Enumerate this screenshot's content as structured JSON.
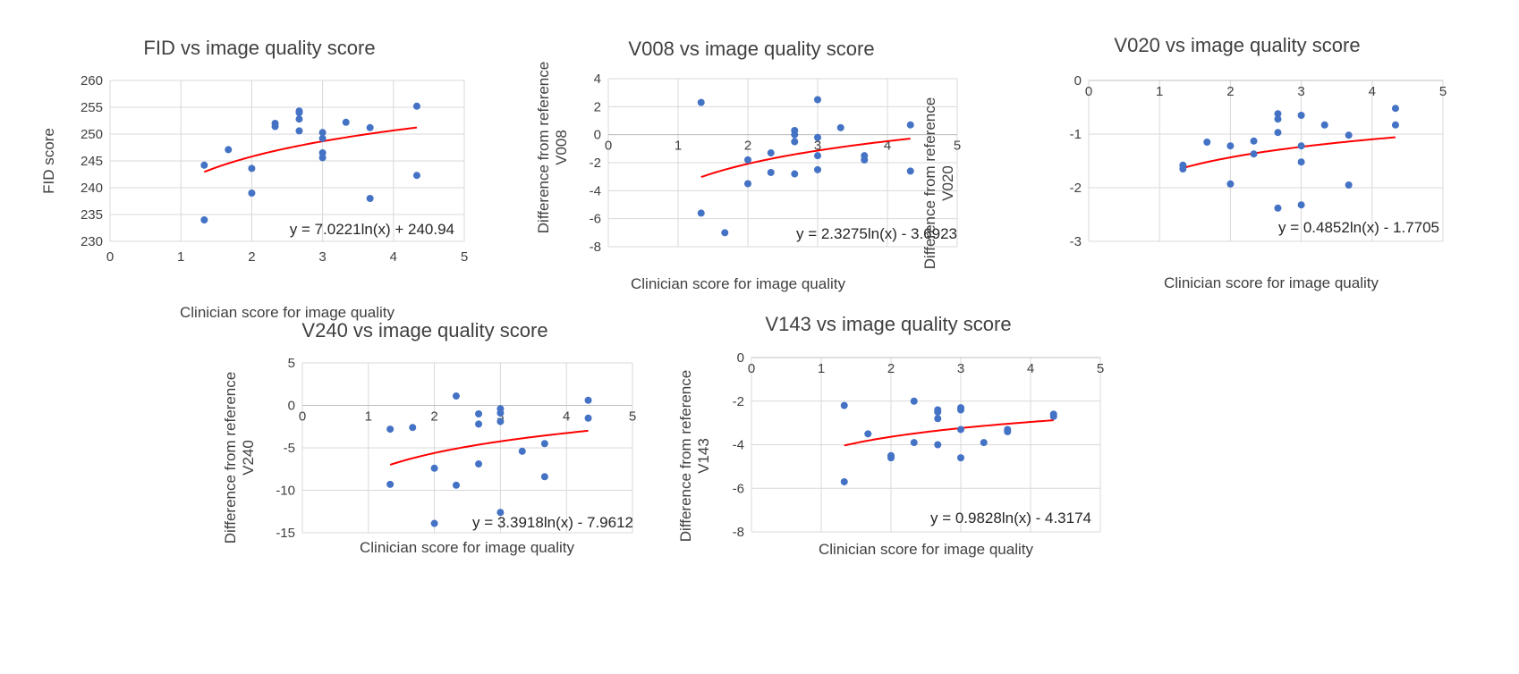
{
  "chart_data": [
    {
      "type": "scatter",
      "title": "FID vs image quality score",
      "xlabel": "Clinician score for image quality",
      "ylabel": "FID score",
      "ylabel2": "",
      "xlim": [
        0,
        5
      ],
      "ylim": [
        230,
        260
      ],
      "xticks": [
        0,
        1,
        2,
        3,
        4,
        5
      ],
      "yticks": [
        230,
        235,
        240,
        245,
        250,
        255,
        260
      ],
      "x_axis_at": "bottom",
      "grid": true,
      "colors": {
        "points": "#4472c4",
        "trendline": "#ff0000"
      },
      "trendline": {
        "a": 7.0221,
        "b": 240.94,
        "x_range": [
          1.33,
          4.33
        ],
        "label": "y = 7.0221ln(x) + 240.94"
      },
      "points": [
        {
          "x": 1.33,
          "y": 244.2
        },
        {
          "x": 1.33,
          "y": 234.0
        },
        {
          "x": 1.67,
          "y": 247.1
        },
        {
          "x": 2.0,
          "y": 243.6
        },
        {
          "x": 2.0,
          "y": 239.0
        },
        {
          "x": 2.33,
          "y": 252.0
        },
        {
          "x": 2.33,
          "y": 251.4
        },
        {
          "x": 2.67,
          "y": 254.3
        },
        {
          "x": 2.67,
          "y": 254.0
        },
        {
          "x": 2.67,
          "y": 252.8
        },
        {
          "x": 2.67,
          "y": 250.6
        },
        {
          "x": 3.0,
          "y": 250.3
        },
        {
          "x": 3.0,
          "y": 249.2
        },
        {
          "x": 3.0,
          "y": 246.5
        },
        {
          "x": 3.0,
          "y": 245.6
        },
        {
          "x": 3.33,
          "y": 252.2
        },
        {
          "x": 3.67,
          "y": 251.2
        },
        {
          "x": 3.67,
          "y": 238.0
        },
        {
          "x": 4.33,
          "y": 255.2
        },
        {
          "x": 4.33,
          "y": 242.3
        }
      ]
    },
    {
      "type": "scatter",
      "title": "V008 vs image quality score",
      "xlabel": "Clinician score for image quality",
      "ylabel": "Difference from reference",
      "ylabel2": "V008",
      "xlim": [
        0,
        5
      ],
      "ylim": [
        -8,
        4
      ],
      "xticks": [
        0,
        1,
        2,
        3,
        4,
        5
      ],
      "yticks": [
        -8,
        -6,
        -4,
        -2,
        0,
        2,
        4
      ],
      "x_axis_at": "zero",
      "grid": true,
      "colors": {
        "points": "#4472c4",
        "trendline": "#ff0000"
      },
      "trendline": {
        "a": 2.3275,
        "b": -3.6923,
        "x_range": [
          1.33,
          4.33
        ],
        "label": "y = 2.3275ln(x) - 3.6923"
      },
      "points": [
        {
          "x": 1.33,
          "y": 2.3
        },
        {
          "x": 1.33,
          "y": -5.6
        },
        {
          "x": 1.67,
          "y": -7.0
        },
        {
          "x": 2.0,
          "y": -1.8
        },
        {
          "x": 2.0,
          "y": -3.5
        },
        {
          "x": 2.33,
          "y": -1.3
        },
        {
          "x": 2.33,
          "y": -2.7
        },
        {
          "x": 2.67,
          "y": 0.3
        },
        {
          "x": 2.67,
          "y": 0.0
        },
        {
          "x": 2.67,
          "y": -0.5
        },
        {
          "x": 2.67,
          "y": -2.8
        },
        {
          "x": 3.0,
          "y": 2.5
        },
        {
          "x": 3.0,
          "y": -0.2
        },
        {
          "x": 3.0,
          "y": -1.5
        },
        {
          "x": 3.0,
          "y": -2.5
        },
        {
          "x": 3.33,
          "y": 0.5
        },
        {
          "x": 3.67,
          "y": -1.5
        },
        {
          "x": 3.67,
          "y": -1.8
        },
        {
          "x": 4.33,
          "y": 0.7
        },
        {
          "x": 4.33,
          "y": -2.6
        }
      ]
    },
    {
      "type": "scatter",
      "title": "V020 vs image quality score",
      "xlabel": "Clinician score for image quality",
      "ylabel": "Difference from reference",
      "ylabel2": "V020",
      "xlim": [
        0,
        5
      ],
      "ylim": [
        -3,
        0
      ],
      "xticks": [
        0,
        1,
        2,
        3,
        4,
        5
      ],
      "yticks": [
        -3,
        -2,
        -1,
        0
      ],
      "x_axis_at": "zero",
      "grid": true,
      "colors": {
        "points": "#4472c4",
        "trendline": "#ff0000"
      },
      "trendline": {
        "a": 0.4852,
        "b": -1.7705,
        "x_range": [
          1.33,
          4.33
        ],
        "label": "y = 0.4852ln(x) - 1.7705"
      },
      "points": [
        {
          "x": 1.33,
          "y": -1.58
        },
        {
          "x": 1.33,
          "y": -1.65
        },
        {
          "x": 1.67,
          "y": -1.15
        },
        {
          "x": 2.0,
          "y": -1.22
        },
        {
          "x": 2.0,
          "y": -1.93
        },
        {
          "x": 2.33,
          "y": -1.13
        },
        {
          "x": 2.33,
          "y": -1.37
        },
        {
          "x": 2.67,
          "y": -0.62
        },
        {
          "x": 2.67,
          "y": -0.72
        },
        {
          "x": 2.67,
          "y": -0.97
        },
        {
          "x": 2.67,
          "y": -2.38
        },
        {
          "x": 3.0,
          "y": -0.65
        },
        {
          "x": 3.0,
          "y": -1.22
        },
        {
          "x": 3.0,
          "y": -1.52
        },
        {
          "x": 3.0,
          "y": -2.32
        },
        {
          "x": 3.33,
          "y": -0.83
        },
        {
          "x": 3.67,
          "y": -1.02
        },
        {
          "x": 3.67,
          "y": -1.95
        },
        {
          "x": 4.33,
          "y": -0.52
        },
        {
          "x": 4.33,
          "y": -0.83
        }
      ]
    },
    {
      "type": "scatter",
      "title": "V240 vs image quality score",
      "xlabel": "Clinician score for image quality",
      "ylabel": "Difference from reference",
      "ylabel2": "V240",
      "xlim": [
        0,
        5
      ],
      "ylim": [
        -15,
        5
      ],
      "xticks": [
        0,
        1,
        2,
        3,
        4,
        5
      ],
      "yticks": [
        -15,
        -10,
        -5,
        0,
        5
      ],
      "x_axis_at": "zero",
      "grid": true,
      "colors": {
        "points": "#4472c4",
        "trendline": "#ff0000"
      },
      "trendline": {
        "a": 3.3918,
        "b": -7.9612,
        "x_range": [
          1.33,
          4.33
        ],
        "label": "y = 3.3918ln(x) - 7.9612"
      },
      "points": [
        {
          "x": 1.33,
          "y": -2.8
        },
        {
          "x": 1.33,
          "y": -9.3
        },
        {
          "x": 1.67,
          "y": -2.6
        },
        {
          "x": 2.0,
          "y": -7.4
        },
        {
          "x": 2.0,
          "y": -13.9
        },
        {
          "x": 2.33,
          "y": 1.1
        },
        {
          "x": 2.33,
          "y": -9.4
        },
        {
          "x": 2.67,
          "y": -1.0
        },
        {
          "x": 2.67,
          "y": -2.2
        },
        {
          "x": 2.67,
          "y": -6.9
        },
        {
          "x": 3.0,
          "y": -0.4
        },
        {
          "x": 3.0,
          "y": -0.9
        },
        {
          "x": 3.0,
          "y": -1.9
        },
        {
          "x": 3.0,
          "y": -12.6
        },
        {
          "x": 3.33,
          "y": -5.4
        },
        {
          "x": 3.67,
          "y": -4.5
        },
        {
          "x": 3.67,
          "y": -8.4
        },
        {
          "x": 4.33,
          "y": 0.6
        },
        {
          "x": 4.33,
          "y": -1.5
        }
      ]
    },
    {
      "type": "scatter",
      "title": "V143 vs image quality score",
      "xlabel": "Clinician score for image quality",
      "ylabel": "Difference from reference",
      "ylabel2": "V143",
      "xlim": [
        0,
        5
      ],
      "ylim": [
        -8,
        0
      ],
      "xticks": [
        0,
        1,
        2,
        3,
        4,
        5
      ],
      "yticks": [
        -8,
        -6,
        -4,
        -2,
        0
      ],
      "x_axis_at": "zero",
      "grid": true,
      "colors": {
        "points": "#4472c4",
        "trendline": "#ff0000"
      },
      "trendline": {
        "a": 0.9828,
        "b": -4.3174,
        "x_range": [
          1.33,
          4.33
        ],
        "label": "y = 0.9828ln(x) - 4.3174"
      },
      "points": [
        {
          "x": 1.33,
          "y": -2.2
        },
        {
          "x": 1.33,
          "y": -5.7
        },
        {
          "x": 1.67,
          "y": -3.5
        },
        {
          "x": 2.0,
          "y": -4.5
        },
        {
          "x": 2.0,
          "y": -4.6
        },
        {
          "x": 2.33,
          "y": -2.0
        },
        {
          "x": 2.33,
          "y": -3.9
        },
        {
          "x": 2.67,
          "y": -2.4
        },
        {
          "x": 2.67,
          "y": -2.5
        },
        {
          "x": 2.67,
          "y": -2.8
        },
        {
          "x": 2.67,
          "y": -4.0
        },
        {
          "x": 3.0,
          "y": -2.3
        },
        {
          "x": 3.0,
          "y": -2.4
        },
        {
          "x": 3.0,
          "y": -3.3
        },
        {
          "x": 3.0,
          "y": -4.6
        },
        {
          "x": 3.33,
          "y": -3.9
        },
        {
          "x": 3.67,
          "y": -3.3
        },
        {
          "x": 3.67,
          "y": -3.4
        },
        {
          "x": 4.33,
          "y": -2.6
        },
        {
          "x": 4.33,
          "y": -2.7
        }
      ]
    }
  ]
}
